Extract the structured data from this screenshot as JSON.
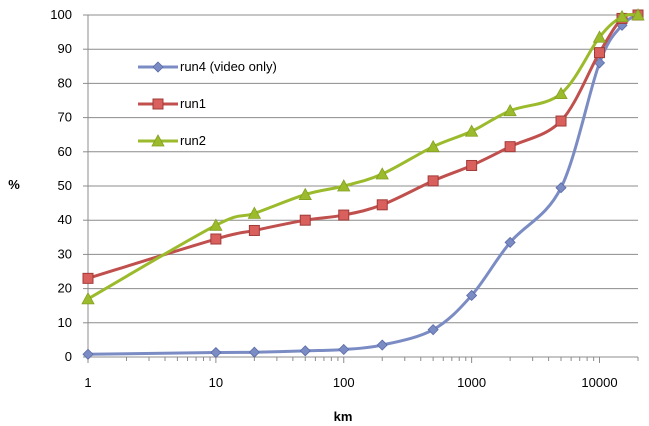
{
  "chart_data": {
    "type": "line",
    "title": "",
    "xlabel": "km",
    "ylabel": "%",
    "x_scale": "log",
    "xlim": [
      1,
      20000
    ],
    "ylim": [
      0,
      100
    ],
    "x_ticks": [
      1,
      10,
      100,
      1000,
      10000
    ],
    "x_tick_labels": [
      "1",
      "10",
      "100",
      "1000",
      "10000"
    ],
    "y_ticks": [
      0,
      10,
      20,
      30,
      40,
      50,
      60,
      70,
      80,
      90,
      100
    ],
    "y_tick_labels": [
      "0",
      "10",
      "20",
      "30",
      "40",
      "50",
      "60",
      "70",
      "80",
      "90",
      "100"
    ],
    "grid": "horizontal",
    "legend_position": "top-left",
    "series": [
      {
        "name": "run4 (video only)",
        "color": "#7b8cc4",
        "marker": "diamond",
        "x": [
          1,
          10,
          20,
          50,
          100,
          200,
          500,
          1000,
          2000,
          5000,
          10000,
          15000,
          20000
        ],
        "y": [
          0.8,
          1.3,
          1.4,
          1.8,
          2.2,
          3.5,
          8,
          18,
          33.5,
          49.5,
          86,
          97,
          100
        ]
      },
      {
        "name": "run1",
        "color": "#c0504d",
        "marker": "square",
        "x": [
          1,
          10,
          20,
          50,
          100,
          200,
          500,
          1000,
          2000,
          5000,
          10000,
          15000,
          20000
        ],
        "y": [
          23,
          34.5,
          37,
          40,
          41.5,
          44.5,
          51.5,
          56,
          61.5,
          69,
          89,
          99,
          100
        ]
      },
      {
        "name": "run2",
        "color": "#9bbb2c",
        "marker": "triangle",
        "x": [
          1,
          10,
          20,
          50,
          100,
          200,
          500,
          1000,
          2000,
          5000,
          10000,
          15000,
          20000
        ],
        "y": [
          17,
          38.5,
          42,
          47.5,
          50,
          53.5,
          61.5,
          66,
          72,
          77,
          93.5,
          99.5,
          100
        ]
      }
    ]
  }
}
